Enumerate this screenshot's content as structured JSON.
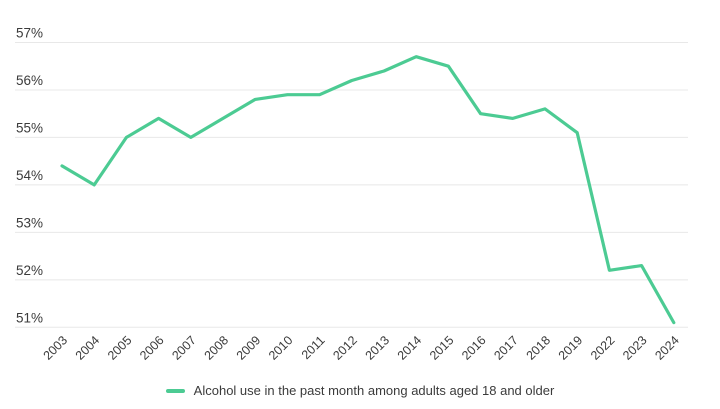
{
  "chart_data": {
    "type": "line",
    "title": "",
    "xlabel": "",
    "ylabel": "",
    "categories": [
      "2003",
      "2004",
      "2005",
      "2006",
      "2007",
      "2008",
      "2009",
      "2010",
      "2011",
      "2012",
      "2013",
      "2014",
      "2015",
      "2016",
      "2017",
      "2018",
      "2019",
      "2022",
      "2023",
      "2024"
    ],
    "series": [
      {
        "name": "Alcohol use in the past month among adults aged 18 and older",
        "values": [
          54.4,
          54.0,
          55.0,
          55.4,
          55.0,
          55.4,
          55.8,
          55.9,
          55.9,
          56.2,
          56.4,
          56.7,
          56.5,
          55.5,
          55.4,
          55.6,
          55.1,
          52.2,
          52.3,
          51.1
        ]
      }
    ],
    "ylim": [
      51,
      57
    ],
    "yticks": [
      "57%",
      "56%",
      "55%",
      "54%",
      "53%",
      "52%",
      "51%"
    ],
    "grid": true,
    "legend_position": "bottom",
    "colors": {
      "line": "#4ccb93",
      "grid": "#e8e8e8",
      "text": "#3b3b3b",
      "background": "#ffffff"
    }
  }
}
